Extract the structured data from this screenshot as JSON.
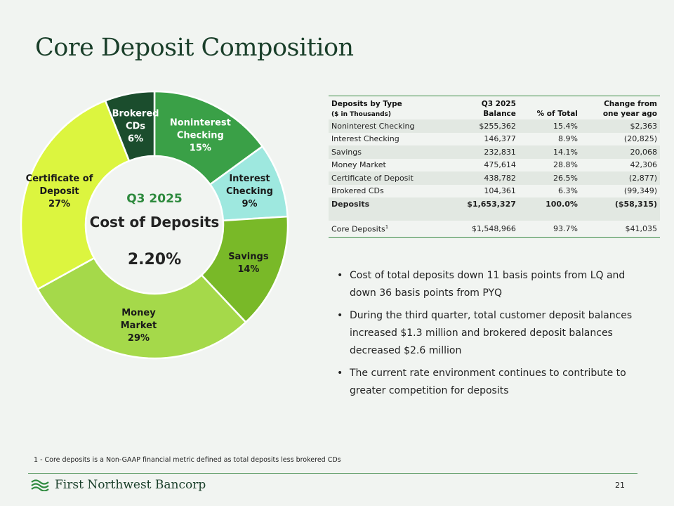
{
  "page": {
    "title": "Core Deposit Composition",
    "footnote": "1 - Core deposits is a Non-GAAP financial metric defined as total deposits less brokered CDs",
    "brand": "First Northwest Bancorp",
    "page_number": "21"
  },
  "chart_data": {
    "type": "pie",
    "variant": "donut",
    "categories": [
      "Noninterest Checking",
      "Interest Checking",
      "Savings",
      "Money Market",
      "Certificate of Deposit",
      "Brokered CDs"
    ],
    "values": [
      15,
      9,
      14,
      29,
      27,
      6
    ],
    "unit": "%",
    "labels": [
      [
        "Noninterest",
        "Checking",
        "15%"
      ],
      [
        "Interest",
        "Checking",
        "9%"
      ],
      [
        "Savings",
        "14%"
      ],
      [
        "Money",
        "Market",
        "29%"
      ],
      [
        "Certificate of",
        "Deposit",
        "27%"
      ],
      [
        "Brokered",
        "CDs",
        "6%"
      ]
    ],
    "colors": [
      "#3aa047",
      "#9ee8df",
      "#79b928",
      "#a5d94a",
      "#dcf53f",
      "#1b4d2d"
    ],
    "label_colors": [
      "#ffffff",
      "#1a1a1a",
      "#1a1a1a",
      "#1a1a1a",
      "#1a1a1a",
      "#ffffff"
    ],
    "center": {
      "line1": "Q3 2025",
      "line2": "Cost of Deposits",
      "line3": "2.20%"
    }
  },
  "table": {
    "headers": {
      "col1": "Deposits by Type",
      "col1_sub": "($ in Thousands)",
      "col2_top": "Q3 2025",
      "col2": "Balance",
      "col3": "% of Total",
      "col4_top": "Change from",
      "col4": "one year ago"
    },
    "rows": [
      {
        "type": "Noninterest Checking",
        "balance": "$255,362",
        "pct": "15.4%",
        "change": "$2,363"
      },
      {
        "type": "Interest Checking",
        "balance": "146,377",
        "pct": "8.9%",
        "change": "(20,825)"
      },
      {
        "type": "Savings",
        "balance": "232,831",
        "pct": "14.1%",
        "change": "20,068"
      },
      {
        "type": "Money Market",
        "balance": "475,614",
        "pct": "28.8%",
        "change": "42,306"
      },
      {
        "type": "Certificate of Deposit",
        "balance": "438,782",
        "pct": "26.5%",
        "change": "(2,877)"
      },
      {
        "type": "Brokered CDs",
        "balance": "104,361",
        "pct": "6.3%",
        "change": "(99,349)"
      }
    ],
    "total": {
      "type": "Deposits",
      "balance": "$1,653,327",
      "pct": "100.0%",
      "change": "($58,315)"
    },
    "core": {
      "type": "Core Deposits",
      "footnote_mark": "1",
      "balance": "$1,548,966",
      "pct": "93.7%",
      "change": "$41,035"
    }
  },
  "bullets": [
    "Cost of total deposits down 11 basis points from LQ and down 36 basis points from PYQ",
    "During the third quarter, total customer deposit balances increased $1.3 million and brokered deposit balances decreased $2.6 million",
    "The current rate environment continues to contribute to greater competition for deposits"
  ]
}
